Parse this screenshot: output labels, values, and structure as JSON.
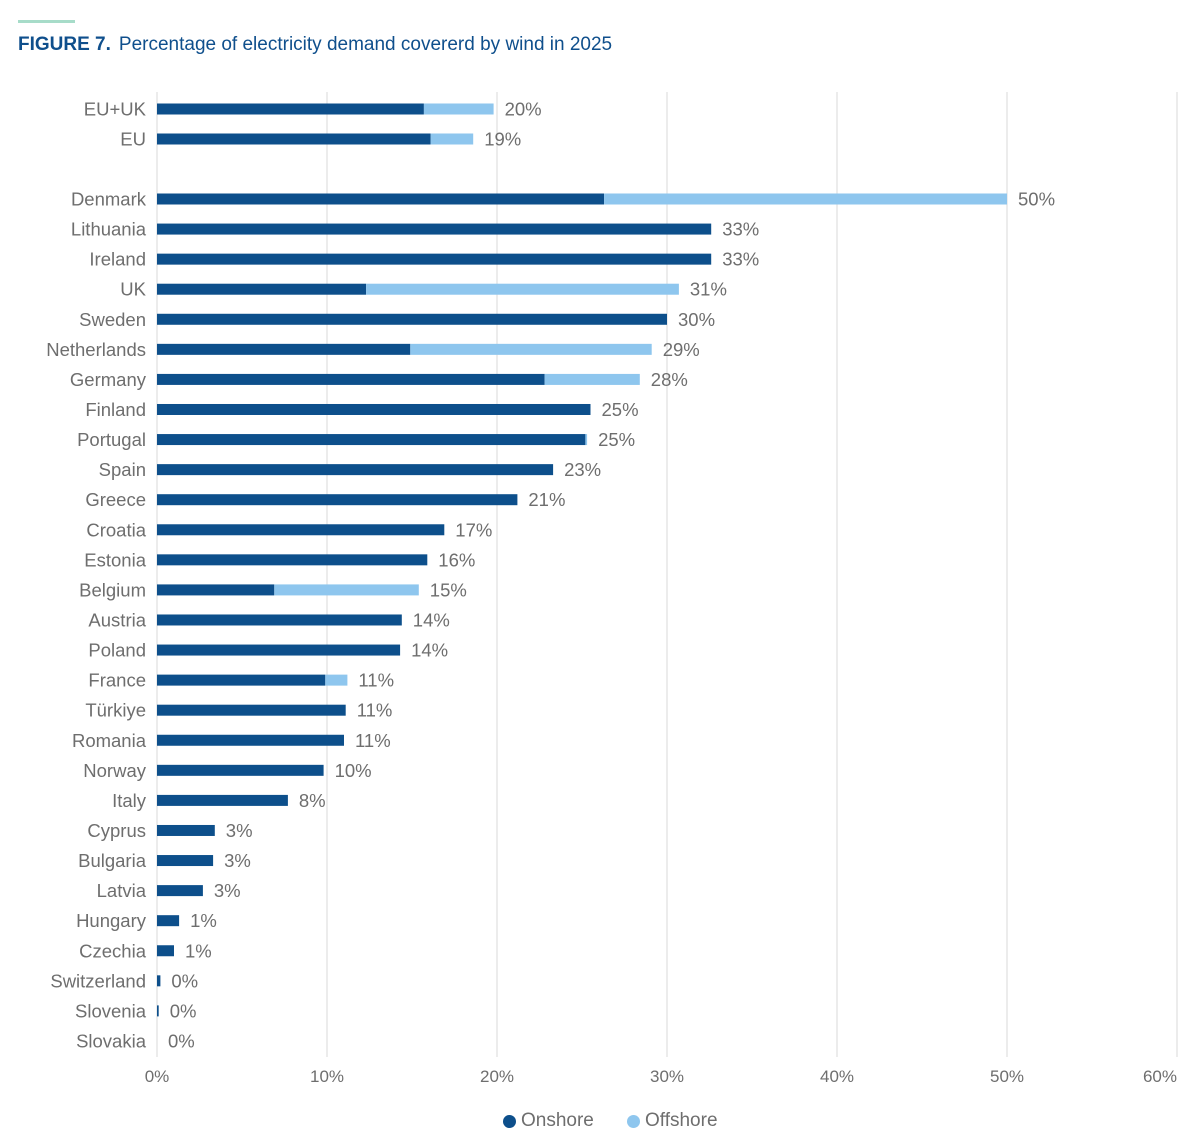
{
  "title": {
    "number": "FIGURE 7.",
    "text": "Percentage of electricity demand covererd by wind in 2025"
  },
  "colors": {
    "onshore": "#0d4f8b",
    "offshore": "#8ec6ee",
    "grid": "#d9d9d9",
    "label": "#6e6e6e",
    "title": "#0f4f8c",
    "accent_rule": "#a7dcc9"
  },
  "legend": {
    "onshore": "Onshore",
    "offshore": "Offshore"
  },
  "chart_data": {
    "type": "bar",
    "orientation": "horizontal",
    "stacked": true,
    "title": "Percentage of electricity demand covererd by wind in 2025",
    "xlim": [
      0,
      60
    ],
    "x_ticks": [
      "0%",
      "10%",
      "20%",
      "30%",
      "40%",
      "50%",
      "60%"
    ],
    "grid": true,
    "legend_position": "bottom",
    "categories": [
      "EU+UK",
      "EU",
      "Denmark",
      "Lithuania",
      "Ireland",
      "UK",
      "Sweden",
      "Netherlands",
      "Germany",
      "Finland",
      "Portugal",
      "Spain",
      "Greece",
      "Croatia",
      "Estonia",
      "Belgium",
      "Austria",
      "Poland",
      "France",
      "Türkiye",
      "Romania",
      "Norway",
      "Italy",
      "Cyprus",
      "Bulgaria",
      "Latvia",
      "Hungary",
      "Czechia",
      "Switzerland",
      "Slovenia",
      "Slovakia"
    ],
    "series": [
      {
        "name": "Onshore",
        "values": [
          15.7,
          16.1,
          26.3,
          32.6,
          32.6,
          12.3,
          30.0,
          14.9,
          22.8,
          25.5,
          25.2,
          23.3,
          21.2,
          16.9,
          15.9,
          6.9,
          14.4,
          14.3,
          9.9,
          11.1,
          11.0,
          9.8,
          7.7,
          3.4,
          3.3,
          2.7,
          1.3,
          1.0,
          0.2,
          0.1,
          0.0
        ]
      },
      {
        "name": "Offshore",
        "values": [
          4.1,
          2.5,
          23.7,
          0.0,
          0.0,
          18.4,
          0.0,
          14.2,
          5.6,
          0.0,
          0.1,
          0.0,
          0.0,
          0.0,
          0.0,
          8.5,
          0.0,
          0.0,
          1.3,
          0.0,
          0.0,
          0.0,
          0.0,
          0.0,
          0.0,
          0.0,
          0.0,
          0.0,
          0.0,
          0.0,
          0.0
        ]
      }
    ],
    "data_labels": [
      "20%",
      "19%",
      "50%",
      "33%",
      "33%",
      "31%",
      "30%",
      "29%",
      "28%",
      "25%",
      "25%",
      "23%",
      "21%",
      "17%",
      "16%",
      "15%",
      "14%",
      "14%",
      "11%",
      "11%",
      "11%",
      "10%",
      "8%",
      "3%",
      "3%",
      "3%",
      "1%",
      "1%",
      "0%",
      "0%",
      "0%"
    ]
  }
}
